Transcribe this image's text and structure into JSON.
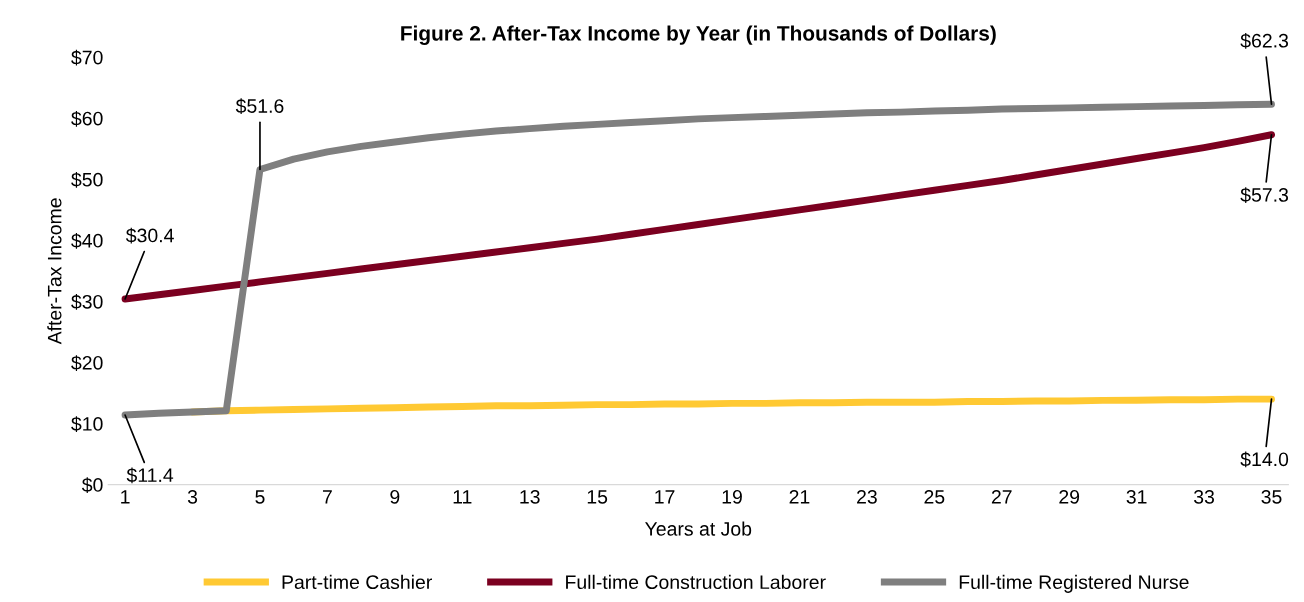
{
  "chart_data": {
    "type": "line",
    "title": "Figure 2. After-Tax Income by Year (in Thousands of Dollars)",
    "xlabel": "Years at Job",
    "ylabel": "After-Tax Income",
    "categories": [
      "1",
      null,
      "3",
      null,
      "5",
      null,
      "7",
      null,
      "9",
      null,
      "11",
      null,
      "13",
      null,
      "15",
      null,
      "17",
      null,
      "19",
      null,
      "21",
      null,
      "23",
      null,
      "25",
      null,
      "27",
      null,
      "29",
      null,
      "31",
      null,
      "33",
      null,
      "35"
    ],
    "series": [
      {
        "name": "Part-time Cashier",
        "color": "#ffc933",
        "values": [
          null,
          null,
          11.9,
          12.1,
          12.2,
          12.3,
          12.4,
          12.5,
          12.6,
          12.7,
          12.8,
          12.9,
          12.9,
          13.0,
          13.1,
          13.1,
          13.2,
          13.2,
          13.3,
          13.3,
          13.4,
          13.4,
          13.5,
          13.5,
          13.5,
          13.6,
          13.6,
          13.7,
          13.7,
          13.8,
          13.8,
          13.9,
          13.9,
          14.0,
          14.0
        ],
        "value_labels": [
          null,
          null,
          null,
          null,
          null,
          null,
          null,
          null,
          null,
          null,
          null,
          null,
          null,
          null,
          null,
          null,
          null,
          null,
          null,
          null,
          null,
          null,
          null,
          null,
          null,
          null,
          null,
          null,
          null,
          null,
          null,
          null,
          null,
          null,
          "$14.0"
        ]
      },
      {
        "name": "Full-time Construction Laborer",
        "color": "#7b0020",
        "values": [
          30.4,
          31.1,
          31.8,
          32.5,
          33.2,
          33.9,
          34.6,
          35.3,
          36.0,
          36.7,
          37.4,
          38.1,
          38.8,
          39.5,
          40.2,
          41.0,
          41.8,
          42.6,
          43.4,
          44.2,
          45.0,
          45.8,
          46.6,
          47.4,
          48.2,
          49.0,
          49.8,
          50.7,
          51.6,
          52.5,
          53.4,
          54.3,
          55.2,
          56.2,
          57.3
        ],
        "value_labels": [
          "$30.4",
          null,
          null,
          null,
          null,
          null,
          null,
          null,
          null,
          null,
          null,
          null,
          null,
          null,
          null,
          null,
          null,
          null,
          null,
          null,
          null,
          null,
          null,
          null,
          null,
          null,
          null,
          null,
          null,
          null,
          null,
          null,
          null,
          null,
          "$57.3"
        ]
      },
      {
        "name": "Full-time Registered Nurse",
        "color": "#7f7f7f",
        "values": [
          11.4,
          11.7,
          11.9,
          12.1,
          51.6,
          53.3,
          54.5,
          55.4,
          56.1,
          56.8,
          57.4,
          57.9,
          58.3,
          58.7,
          59.0,
          59.3,
          59.6,
          59.9,
          60.1,
          60.3,
          60.5,
          60.7,
          60.9,
          61.0,
          61.2,
          61.3,
          61.5,
          61.6,
          61.7,
          61.8,
          61.9,
          62.0,
          62.1,
          62.2,
          62.3
        ],
        "value_labels": [
          "$11.4",
          null,
          null,
          null,
          "$51.6",
          null,
          null,
          null,
          null,
          null,
          null,
          null,
          null,
          null,
          null,
          null,
          null,
          null,
          null,
          null,
          null,
          null,
          null,
          null,
          null,
          null,
          null,
          null,
          null,
          null,
          null,
          null,
          null,
          null,
          "$62.3"
        ]
      }
    ],
    "ylim": [
      0,
      70
    ],
    "yticks": [
      {
        "value": 0,
        "label": "$0"
      },
      {
        "value": 10,
        "label": "$10"
      },
      {
        "value": 20,
        "label": "$20"
      },
      {
        "value": 30,
        "label": "$30"
      },
      {
        "value": 40,
        "label": "$40"
      },
      {
        "value": 50,
        "label": "$50"
      },
      {
        "value": 60,
        "label": "$60"
      },
      {
        "value": 70,
        "label": "$70"
      }
    ],
    "legend": "bottom",
    "grid": false,
    "marker": "none",
    "line_style": "solid"
  }
}
